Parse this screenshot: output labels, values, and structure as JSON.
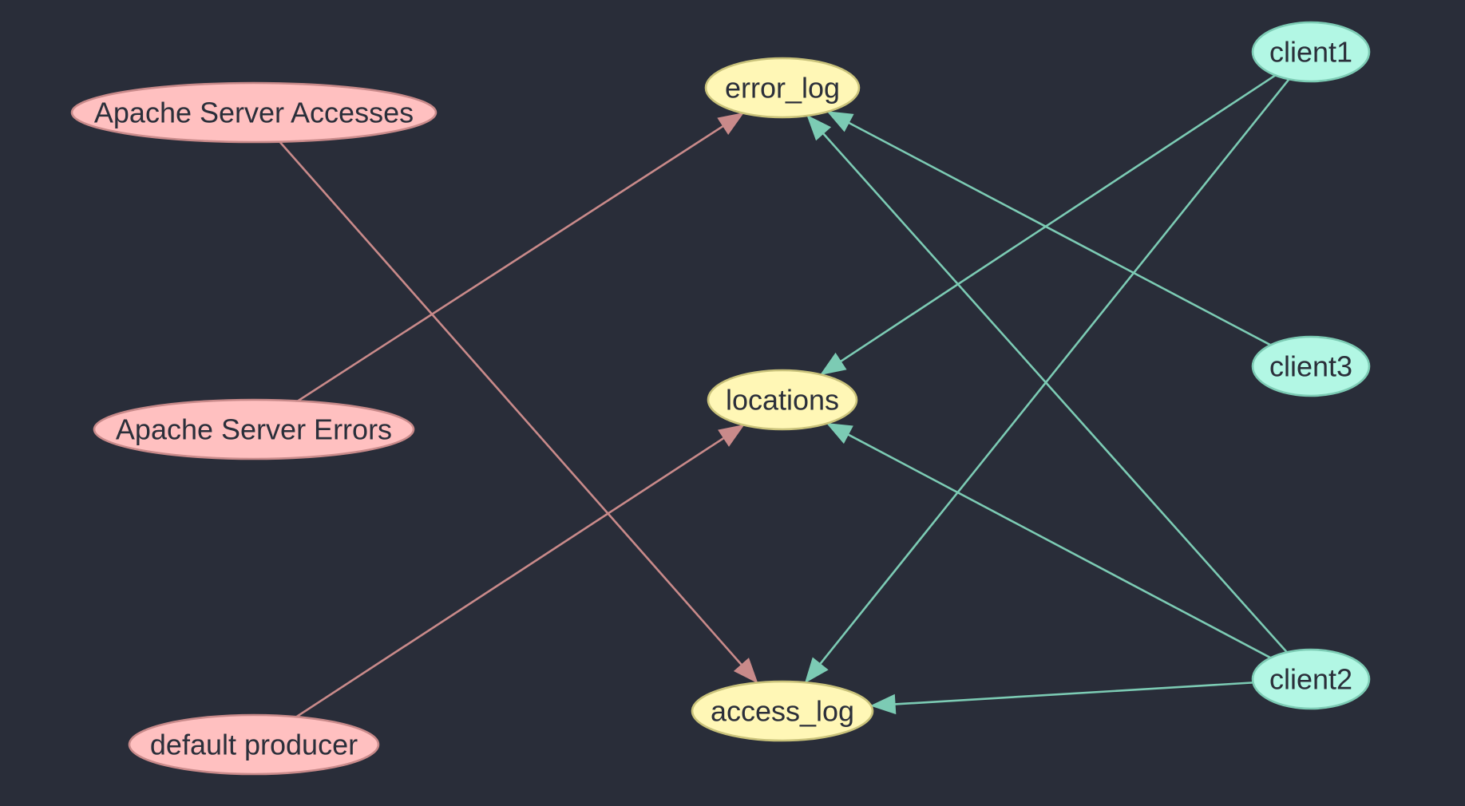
{
  "graph": {
    "colors": {
      "background": "#292d39",
      "producer_fill": "#ffc0c0",
      "producer_stroke": "#c98a8a",
      "topic_fill": "#fff7b6",
      "topic_stroke": "#c9c27a",
      "client_fill": "#b2f7e4",
      "client_stroke": "#7ccbb4",
      "producer_edge": "#c98a8a",
      "client_edge": "#7ccbb4",
      "text": "#2b2f3a"
    },
    "nodes": {
      "apache_server_accesses": {
        "label": "Apache Server Accesses",
        "group": "producer"
      },
      "apache_server_errors": {
        "label": "Apache Server Errors",
        "group": "producer"
      },
      "default_producer": {
        "label": "default producer",
        "group": "producer"
      },
      "error_log": {
        "label": "error_log",
        "group": "topic"
      },
      "locations": {
        "label": "locations",
        "group": "topic"
      },
      "access_log": {
        "label": "access_log",
        "group": "topic"
      },
      "client1": {
        "label": "client1",
        "group": "client"
      },
      "client3": {
        "label": "client3",
        "group": "client"
      },
      "client2": {
        "label": "client2",
        "group": "client"
      }
    },
    "edges": [
      {
        "from": "apache_server_accesses",
        "to": "access_log",
        "kind": "producer"
      },
      {
        "from": "apache_server_errors",
        "to": "error_log",
        "kind": "producer"
      },
      {
        "from": "default_producer",
        "to": "locations",
        "kind": "producer"
      },
      {
        "from": "client1",
        "to": "locations",
        "kind": "client"
      },
      {
        "from": "client1",
        "to": "access_log",
        "kind": "client"
      },
      {
        "from": "client3",
        "to": "error_log",
        "kind": "client"
      },
      {
        "from": "client2",
        "to": "error_log",
        "kind": "client"
      },
      {
        "from": "client2",
        "to": "locations",
        "kind": "client"
      },
      {
        "from": "client2",
        "to": "access_log",
        "kind": "client"
      }
    ]
  }
}
